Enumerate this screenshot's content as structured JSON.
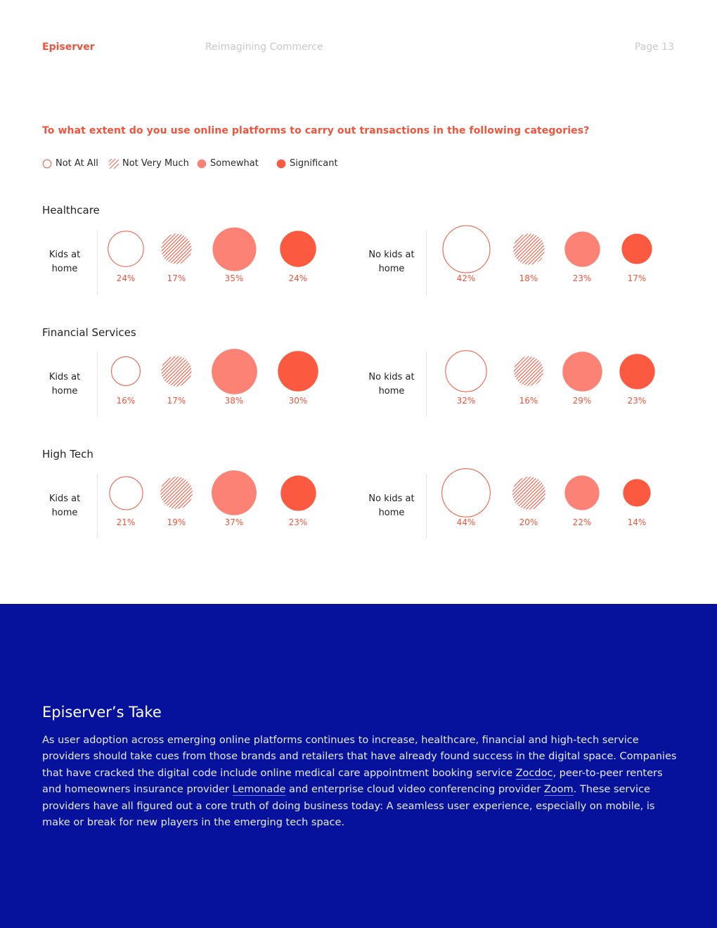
{
  "header": {
    "brand": "Episerver",
    "title": "Reimagining Commerce",
    "page": "Page 13"
  },
  "chart_data": {
    "type": "bubble",
    "title": "To what extent do you use online platforms to carry out transactions in the following categories?",
    "legend": [
      {
        "label": "Not At All",
        "style": "outline"
      },
      {
        "label": "Not Very Much",
        "style": "hatched"
      },
      {
        "label": "Somewhat",
        "style": "light-fill"
      },
      {
        "label": "Significant",
        "style": "solid-fill"
      }
    ],
    "colors": {
      "accent": "#f0543c",
      "light": "#fb8274",
      "solid": "#fc5a40"
    },
    "categories": [
      {
        "name": "Healthcare",
        "segments": [
          {
            "label": "Kids at home",
            "values": [
              24,
              17,
              35,
              24
            ],
            "labels": [
              "24%",
              "17%",
              "35%",
              "24%"
            ]
          },
          {
            "label": "No kids at home",
            "values": [
              42,
              18,
              23,
              17
            ],
            "labels": [
              "42%",
              "18%",
              "23%",
              "17%"
            ]
          }
        ]
      },
      {
        "name": "Financial Services",
        "segments": [
          {
            "label": "Kids at home",
            "values": [
              16,
              17,
              38,
              30
            ],
            "labels": [
              "16%",
              "17%",
              "38%",
              "30%"
            ]
          },
          {
            "label": "No kids at home",
            "values": [
              32,
              16,
              29,
              23
            ],
            "labels": [
              "32%",
              "16%",
              "29%",
              "23%"
            ]
          }
        ]
      },
      {
        "name": "High Tech",
        "segments": [
          {
            "label": "Kids at home",
            "values": [
              21,
              19,
              37,
              23
            ],
            "labels": [
              "21%",
              "19%",
              "37%",
              "23%"
            ]
          },
          {
            "label": "No kids at home",
            "values": [
              44,
              20,
              22,
              14
            ],
            "labels": [
              "44%",
              "20%",
              "22%",
              "14%"
            ]
          }
        ]
      }
    ]
  },
  "take": {
    "title": "Episerver’s Take",
    "p1": "As user adoption across emerging online platforms continues to increase, healthcare, financial and high-tech service providers should take cues from those brands and retailers that have already found success in the digital space. Companies that have cracked the digital code include online medical care appointment booking service ",
    "link1": "Zocdoc",
    "p2": ", peer-to-peer renters and homeowners insurance provider ",
    "link2": "Lemonade",
    "p3": " and enterprise cloud video conferencing provider ",
    "link3": "Zoom",
    "p4": ". These service providers have all figured out a core truth of doing business today: A seamless user experience, especially on mobile, is make or break for new players in the emerging tech space."
  }
}
